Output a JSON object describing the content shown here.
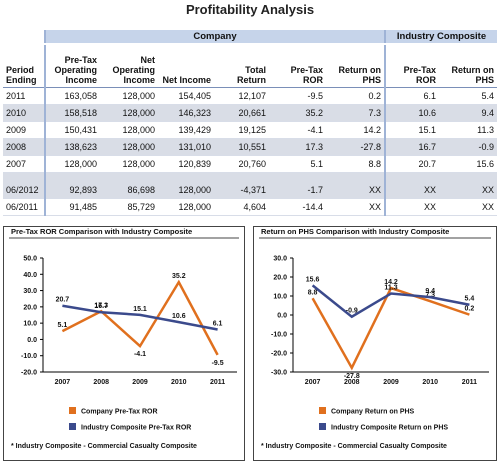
{
  "title": "Profitability Analysis",
  "table": {
    "groups": [
      "Company",
      "Industry Composite"
    ],
    "columns": [
      "Period Ending",
      "Pre-Tax Operating Income",
      "Net Operating Income",
      "Net Income",
      "Total Return",
      "Pre-Tax ROR",
      "Return on PHS",
      "Pre-Tax ROR",
      "Return on PHS"
    ],
    "rows": [
      [
        "2011",
        "163,058",
        "128,000",
        "154,405",
        "12,107",
        "-9.5",
        "0.2",
        "6.1",
        "5.4"
      ],
      [
        "2010",
        "158,518",
        "128,000",
        "146,323",
        "20,661",
        "35.2",
        "7.3",
        "10.6",
        "9.4"
      ],
      [
        "2009",
        "150,431",
        "128,000",
        "139,429",
        "19,125",
        "-4.1",
        "14.2",
        "15.1",
        "11.3"
      ],
      [
        "2008",
        "138,623",
        "128,000",
        "131,010",
        "10,551",
        "17.3",
        "-27.8",
        "16.7",
        "-0.9"
      ],
      [
        "2007",
        "128,000",
        "128,000",
        "120,839",
        "20,760",
        "5.1",
        "8.8",
        "20.7",
        "15.6"
      ],
      [
        "06/2012",
        "92,893",
        "86,698",
        "128,000",
        "-4,371",
        "-1.7",
        "XX",
        "XX",
        "XX"
      ],
      [
        "06/2011",
        "91,485",
        "85,729",
        "128,000",
        "4,604",
        "-14.4",
        "XX",
        "XX",
        "XX"
      ]
    ]
  },
  "chart_data": [
    {
      "type": "line",
      "title": "Pre-Tax ROR Comparison with Industry Composite",
      "categories": [
        "2007",
        "2008",
        "2009",
        "2010",
        "2011"
      ],
      "series": [
        {
          "name": "Company Pre-Tax ROR",
          "color": "#e0701e",
          "values": [
            5.1,
            17.3,
            -4.1,
            35.2,
            -9.5
          ]
        },
        {
          "name": "Industry Composite Pre-Tax ROR",
          "color": "#3b4a8c",
          "values": [
            20.7,
            16.7,
            15.1,
            10.6,
            6.1
          ]
        }
      ],
      "ylim": [
        -20,
        50
      ],
      "yticks": [
        {
          "value": 50,
          "label": "50.0"
        },
        {
          "value": 40,
          "label": "40.0"
        },
        {
          "value": 30,
          "label": "30.0"
        },
        {
          "value": 20,
          "label": "20.0"
        },
        {
          "value": 10,
          "label": "10.0"
        },
        {
          "value": 0,
          "label": "0.0"
        },
        {
          "value": -10,
          "label": "-10.0"
        },
        {
          "value": -20,
          "label": "-20.0"
        }
      ],
      "footnote": "* Industry Composite - Commercial Casualty Composite"
    },
    {
      "type": "line",
      "title": "Return on PHS Comparison with Industry Composite",
      "categories": [
        "2007",
        "2008",
        "2009",
        "2010",
        "2011"
      ],
      "series": [
        {
          "name": "Company Return on PHS",
          "color": "#e0701e",
          "values": [
            8.8,
            -27.8,
            14.2,
            7.3,
            0.2
          ]
        },
        {
          "name": "Industry Composite Return on PHS",
          "color": "#3b4a8c",
          "values": [
            15.6,
            -0.9,
            11.3,
            9.4,
            5.4
          ]
        }
      ],
      "ylim": [
        -30,
        30
      ],
      "yticks": [
        {
          "value": 30,
          "label": "30.0"
        },
        {
          "value": 20,
          "label": "20.0"
        },
        {
          "value": 10,
          "label": "10.0"
        },
        {
          "value": 0,
          "label": "0.0"
        },
        {
          "value": -10,
          "label": "-10.0"
        },
        {
          "value": -20,
          "label": "-20.0"
        },
        {
          "value": -30,
          "label": "-30.0"
        }
      ],
      "footnote": "* Industry Composite - Commercial Casualty Composite"
    }
  ]
}
